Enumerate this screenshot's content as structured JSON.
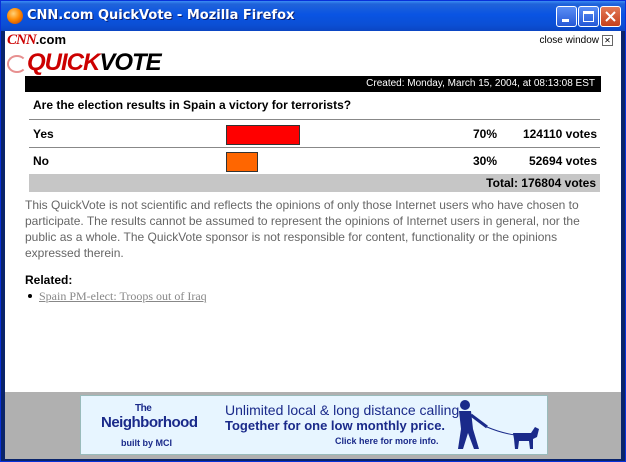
{
  "window": {
    "title": "CNN.com QuickVote - Mozilla Firefox"
  },
  "header": {
    "logo_cnn": "CNN",
    "logo_cnn_suffix": ".com",
    "logo_qv1": "QUICK",
    "logo_qv2": "VOTE",
    "close_window": "close window"
  },
  "poll": {
    "created": "Created: Monday, March 15, 2004, at 08:13:08 EST",
    "question": "Are the election results in Spain a victory for terrorists?",
    "options": [
      {
        "label": "Yes",
        "percent_text": "70%",
        "votes_text": "124110 votes",
        "fraction": 0.7,
        "color": "#ff0000"
      },
      {
        "label": "No",
        "percent_text": "30%",
        "votes_text": "52694 votes",
        "fraction": 0.3,
        "color": "#ff6600"
      }
    ],
    "total": "Total: 176804 votes"
  },
  "disclaimer": "This QuickVote is not scientific and reflects the opinions of only those Internet users who have chosen to participate. The results cannot be assumed to represent the opinions of Internet users in general, nor the public as a whole. The QuickVote sponsor is not responsible for content, functionality or the opinions expressed therein.",
  "related": {
    "label": "Related:",
    "items": [
      {
        "text": "Spain PM-elect: Troops out of Iraq"
      }
    ]
  },
  "ad": {
    "brand_the": "The",
    "brand": "Neighborhood",
    "built_by": "built by MCI",
    "line1": "Unlimited local & long distance calling.",
    "line2": "Together for one low monthly price.",
    "line3": "Click here for more info."
  }
}
